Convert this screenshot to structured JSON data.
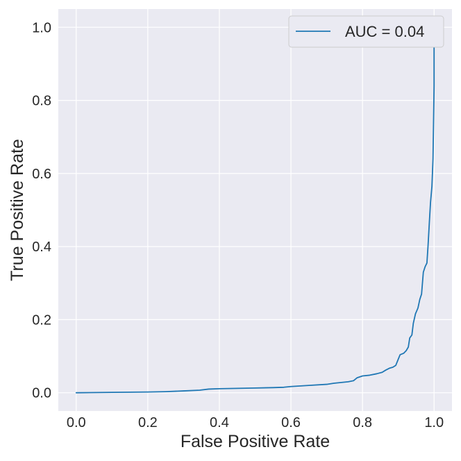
{
  "chart_data": {
    "type": "line",
    "title": "",
    "xlabel": "False Positive Rate",
    "ylabel": "True Positive Rate",
    "xlim": [
      -0.05,
      1.05
    ],
    "ylim": [
      -0.05,
      1.05
    ],
    "xticks": [
      0.0,
      0.2,
      0.4,
      0.6,
      0.8,
      1.0
    ],
    "xtick_labels": [
      "0.0",
      "0.2",
      "0.4",
      "0.6",
      "0.8",
      "1.0"
    ],
    "yticks": [
      0.0,
      0.2,
      0.4,
      0.6,
      0.8,
      1.0
    ],
    "ytick_labels": [
      "0.0",
      "0.2",
      "0.4",
      "0.6",
      "0.8",
      "1.0"
    ],
    "grid": true,
    "legend_position": "top-right",
    "colors": {
      "background": "#eaeaf2",
      "grid": "#ffffff",
      "line": "#1f77b4",
      "text": "#262626"
    },
    "series": [
      {
        "name": "AUC = 0.04",
        "x": [
          0.0,
          0.1,
          0.2,
          0.25,
          0.3,
          0.345,
          0.37,
          0.4,
          0.45,
          0.5,
          0.55,
          0.58,
          0.6,
          0.65,
          0.7,
          0.72,
          0.76,
          0.775,
          0.785,
          0.8,
          0.82,
          0.84,
          0.855,
          0.865,
          0.875,
          0.885,
          0.893,
          0.9,
          0.905,
          0.915,
          0.922,
          0.928,
          0.932,
          0.938,
          0.942,
          0.948,
          0.955,
          0.96,
          0.965,
          0.97,
          0.975,
          0.98,
          0.983,
          0.987,
          0.99,
          0.994,
          0.997,
          1.0,
          1.0
        ],
        "y": [
          0.0,
          0.001,
          0.002,
          0.003,
          0.005,
          0.007,
          0.01,
          0.011,
          0.012,
          0.013,
          0.014,
          0.015,
          0.017,
          0.02,
          0.023,
          0.026,
          0.03,
          0.033,
          0.041,
          0.046,
          0.048,
          0.052,
          0.056,
          0.062,
          0.067,
          0.07,
          0.075,
          0.092,
          0.104,
          0.108,
          0.115,
          0.125,
          0.15,
          0.158,
          0.19,
          0.216,
          0.232,
          0.255,
          0.27,
          0.33,
          0.345,
          0.355,
          0.4,
          0.47,
          0.52,
          0.565,
          0.64,
          0.84,
          1.0
        ]
      }
    ]
  }
}
